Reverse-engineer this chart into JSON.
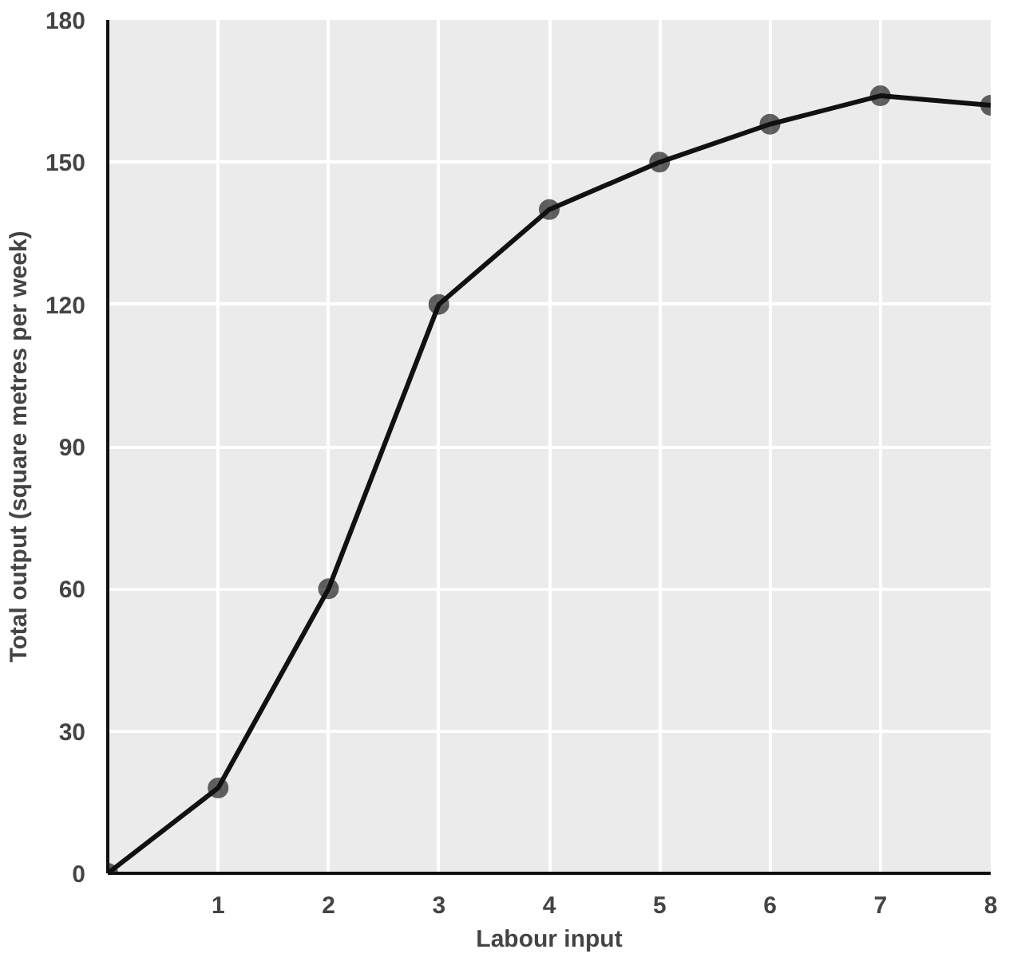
{
  "chart_data": {
    "type": "line",
    "xlabel": "Labour input",
    "ylabel": "Total output (square metres per week)",
    "x": [
      0,
      1,
      2,
      3,
      4,
      5,
      6,
      7,
      8
    ],
    "series": [
      {
        "color": "#111111",
        "values": [
          0,
          18,
          60,
          120,
          140,
          150,
          158,
          164,
          162
        ]
      }
    ],
    "xlim": [
      0,
      8
    ],
    "ylim": [
      0,
      180
    ],
    "xticks": [
      1,
      2,
      3,
      4,
      5,
      6,
      7,
      8
    ],
    "yticks": [
      0,
      30,
      60,
      90,
      120,
      150,
      180
    ],
    "grid": true,
    "marker": "circle",
    "line_style": "solid"
  }
}
